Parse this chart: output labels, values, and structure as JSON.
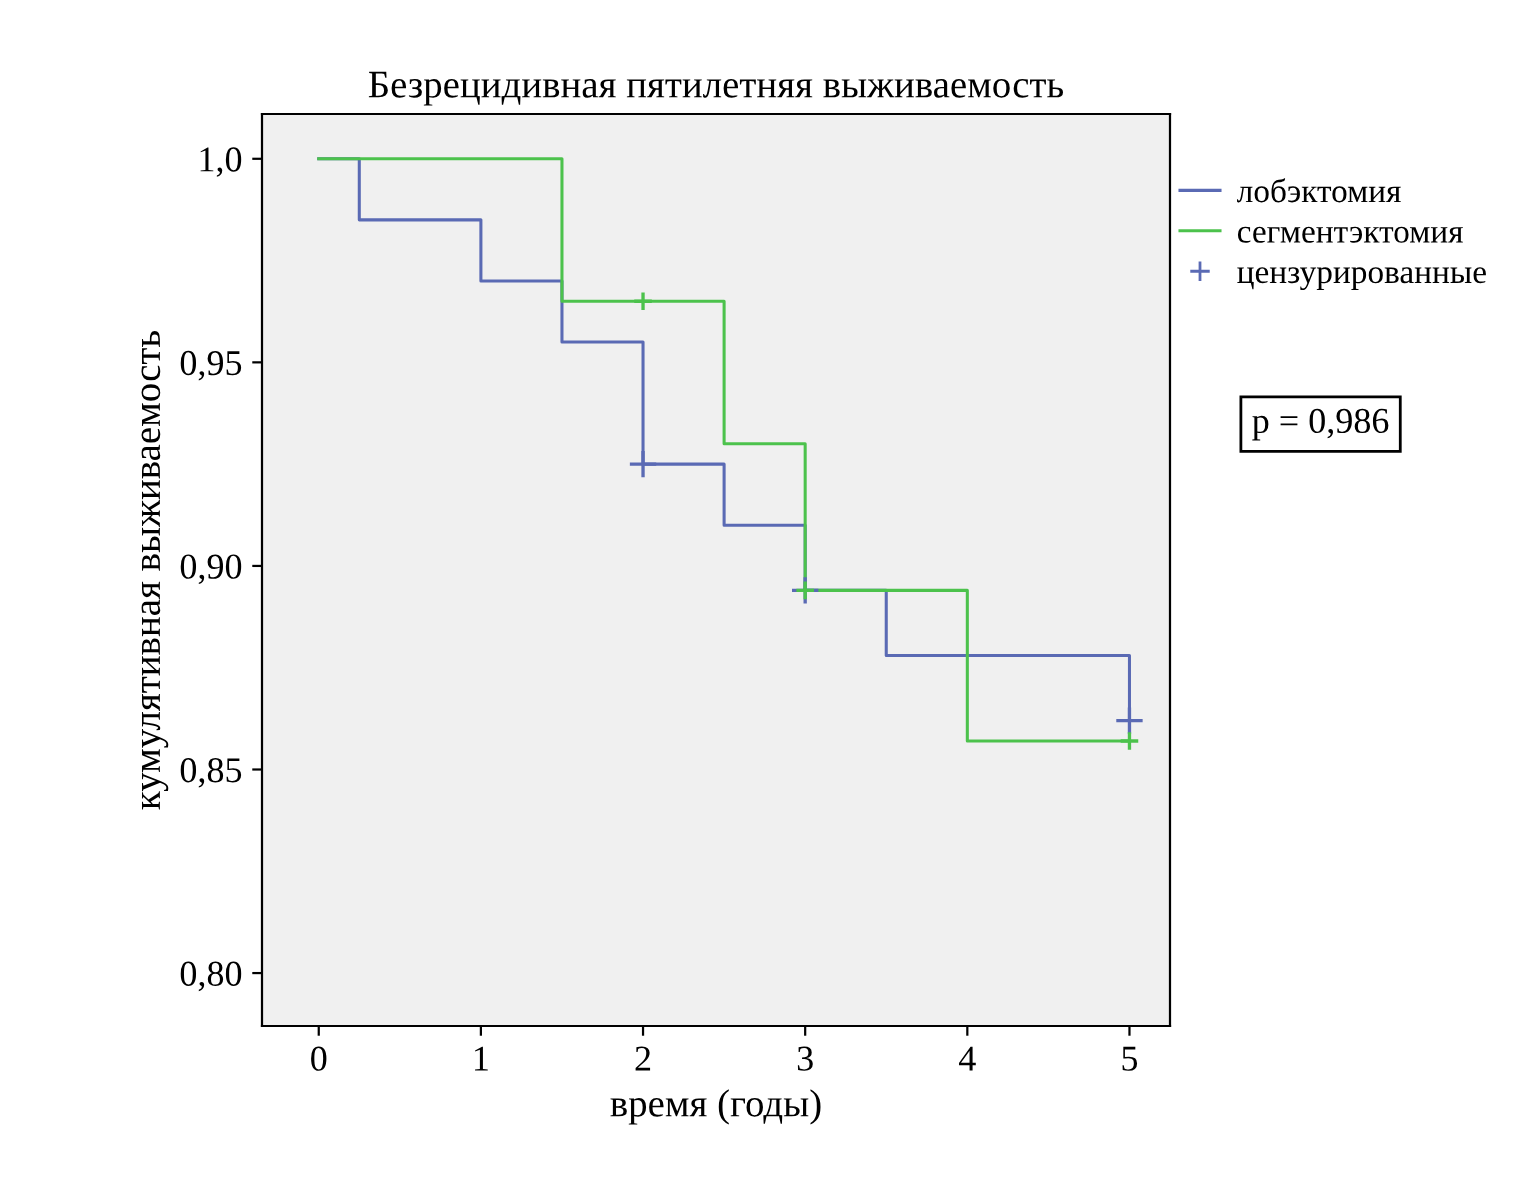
{
  "chart_data": {
    "type": "step",
    "title": "Безрецидивная пятилетняя выживаемость",
    "xlabel": "время (годы)",
    "ylabel": "кумулятивная выживаемость",
    "series": [
      {
        "name": "лобэктомия",
        "color": "#5a6ab4",
        "x": [
          0,
          0.25,
          1,
          1.5,
          2,
          2.5,
          3,
          3.5,
          5
        ],
        "values": [
          1.0,
          0.985,
          0.97,
          0.955,
          0.925,
          0.91,
          0.894,
          0.878,
          0.862
        ]
      },
      {
        "name": "сегментэктомия",
        "color": "#4cc24c",
        "x": [
          0,
          1.5,
          2.5,
          3,
          4,
          5
        ],
        "values": [
          1.0,
          0.965,
          0.93,
          0.894,
          0.857,
          0.857
        ]
      },
      {
        "name": "цензурированные",
        "type": "scatter",
        "marker": "cross",
        "color": "#5a6ab4",
        "x": [
          2,
          3,
          5
        ],
        "values": [
          0.925,
          0.894,
          0.862
        ]
      },
      {
        "type": "scatter",
        "marker": "cross",
        "color": "#4cc24c",
        "x": [
          2,
          3,
          5
        ],
        "values": [
          0.965,
          0.894,
          0.857
        ]
      }
    ],
    "xlim": [
      -0.35,
      5.25
    ],
    "ylim": [
      0.787,
      1.011
    ],
    "xticks": [
      0,
      1,
      2,
      3,
      4,
      5
    ],
    "yticks": [
      {
        "value": 0.8,
        "label": "0,80"
      },
      {
        "value": 0.85,
        "label": "0,85"
      },
      {
        "value": 0.9,
        "label": "0,90"
      },
      {
        "value": 0.95,
        "label": "0,95"
      },
      {
        "value": 1.0,
        "label": "1,0"
      }
    ],
    "annotations": [
      "p = 0,986"
    ],
    "legend": "right",
    "grid": false
  }
}
